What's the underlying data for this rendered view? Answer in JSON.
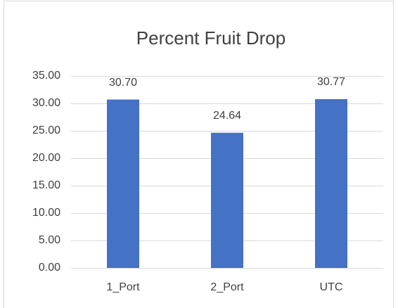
{
  "chart_data": {
    "type": "bar",
    "title": "Percent Fruit Drop",
    "categories": [
      "1_Port",
      "2_Port",
      "UTC"
    ],
    "values": [
      30.7,
      24.64,
      30.77
    ],
    "value_labels": [
      "30.70",
      "24.64",
      "30.77"
    ],
    "color": "#4472c4",
    "ylim": [
      0,
      35
    ],
    "yticks": [
      {
        "value": 0,
        "label": "0.00"
      },
      {
        "value": 5,
        "label": "5.00"
      },
      {
        "value": 10,
        "label": "10.00"
      },
      {
        "value": 15,
        "label": "15.00"
      },
      {
        "value": 20,
        "label": "20.00"
      },
      {
        "value": 25,
        "label": "25.00"
      },
      {
        "value": 30,
        "label": "30.00"
      },
      {
        "value": 35,
        "label": "35.00"
      }
    ],
    "grid": true
  }
}
